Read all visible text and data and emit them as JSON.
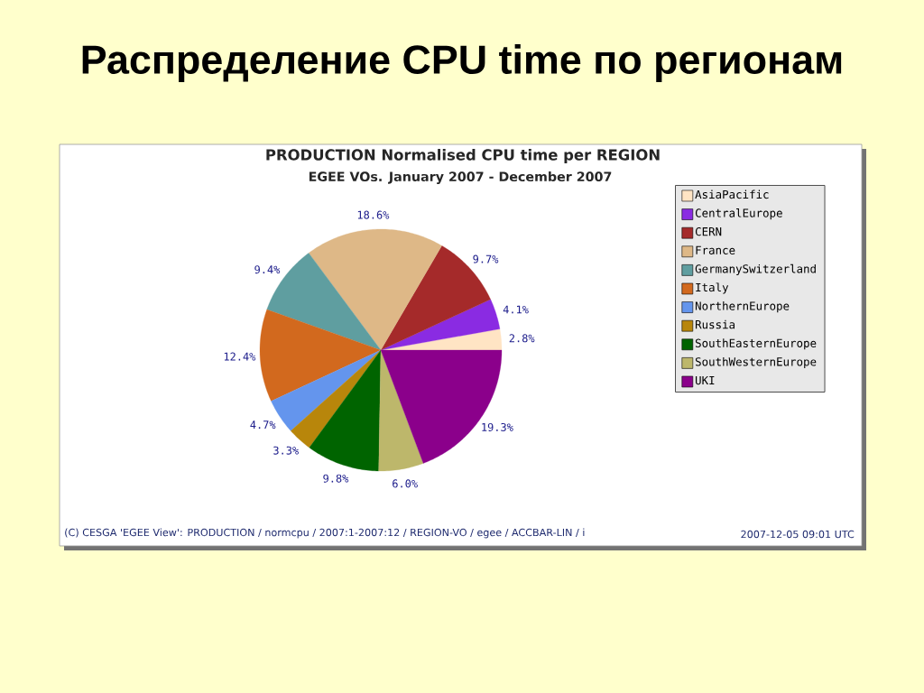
{
  "chart_data": {
    "type": "pie",
    "title": "Распределение CPU time по регионам",
    "subtitle": "PRODUCTION Normalised CPU time per REGION",
    "annotations": [
      "EGEE VOs. January 2007 - December 2007",
      "(C) CESGA 'EGEE View': PRODUCTION / normcpu / 2007:1-2007:12 / REGION-VO / egee / ACCBAR-LIN / i",
      "2007-12-05 09:01 UTC"
    ],
    "categories": [
      "AsiaPacific",
      "CentralEurope",
      "CERN",
      "France",
      "GermanySwitzerland",
      "Italy",
      "NorthernEurope",
      "Russia",
      "SouthEasternEurope",
      "SouthWesternEurope",
      "UKI"
    ],
    "values": [
      2.8,
      4.1,
      9.7,
      18.6,
      9.4,
      12.4,
      4.7,
      3.3,
      9.8,
      6.0,
      19.3
    ],
    "colors": [
      "#ffe4c4",
      "#8a2be2",
      "#a52a2a",
      "#deb887",
      "#5f9ea0",
      "#d2691e",
      "#6495ed",
      "#b8860b",
      "#006400",
      "#bdb76b",
      "#8b008b"
    ],
    "value_labels": [
      "2.8%",
      "4.1%",
      "9.7%",
      "18.6%",
      "9.4%",
      "12.4%",
      "4.7%",
      "3.3%",
      "9.8%",
      "6.0%",
      "19.3%"
    ],
    "legend": "right"
  }
}
